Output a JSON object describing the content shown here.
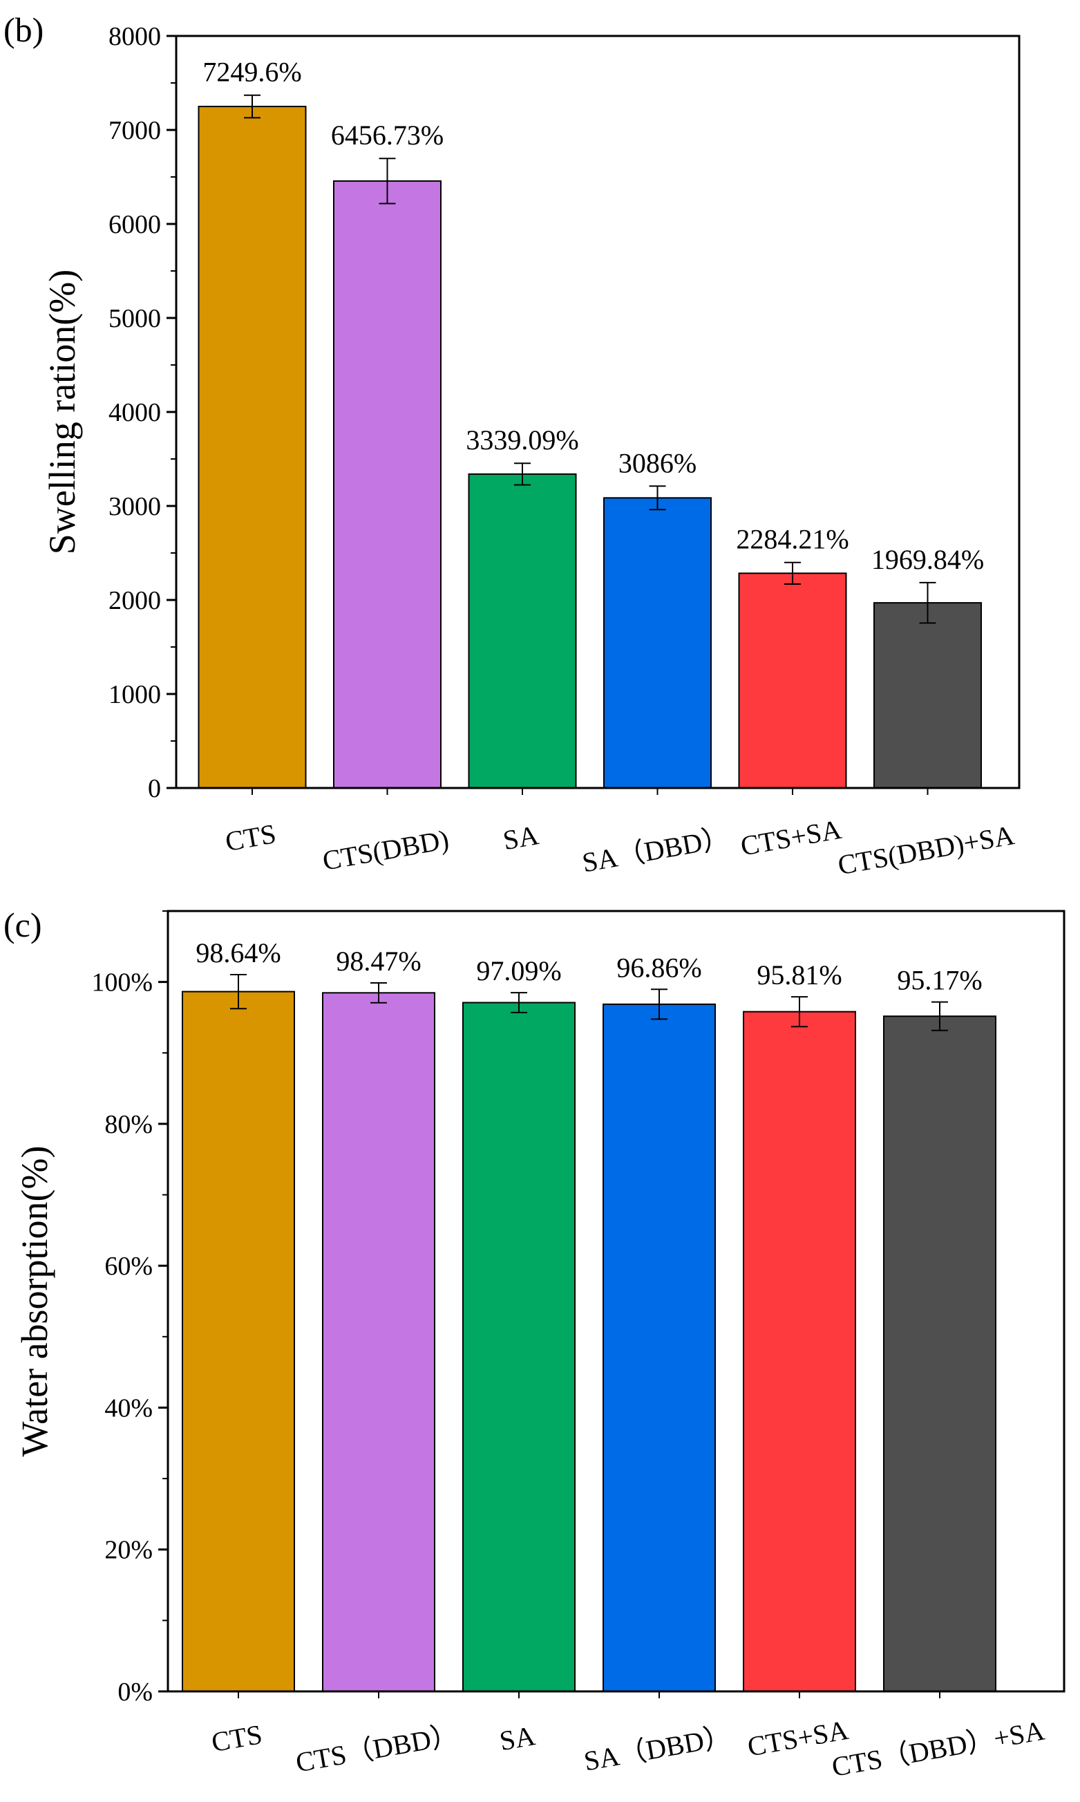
{
  "colors": [
    "#d89500",
    "#c477e3",
    "#00a862",
    "#006be6",
    "#ff3a3f",
    "#4f4f4f"
  ],
  "chart_data": [
    {
      "type": "bar",
      "panel_label": "(b)",
      "categories": [
        "CTS",
        "CTS(DBD)",
        "SA",
        "SA（DBD）",
        "CTS+SA",
        "CTS(DBD)+SA"
      ],
      "values": [
        7249.6,
        6456.73,
        3339.09,
        3086,
        2284.21,
        1969.84
      ],
      "errors": [
        120,
        240,
        115,
        125,
        115,
        215
      ],
      "data_labels": [
        "7249.6%",
        "6456.73%",
        "3339.09%",
        "3086%",
        "2284.21%",
        "1969.84%"
      ],
      "xlabel": "",
      "ylabel": "Swelling ration(%)",
      "ylim": [
        0,
        8000
      ],
      "yticks": [
        0,
        1000,
        2000,
        3000,
        4000,
        5000,
        6000,
        7000,
        8000
      ],
      "ytick_labels": [
        "0",
        "1000",
        "2000",
        "3000",
        "4000",
        "5000",
        "6000",
        "7000",
        "8000"
      ]
    },
    {
      "type": "bar",
      "panel_label": "(c)",
      "categories": [
        "CTS",
        "CTS（DBD）",
        "SA",
        "SA（DBD）",
        "CTS+SA",
        "CTS（DBD）+SA"
      ],
      "values": [
        98.64,
        98.47,
        97.09,
        96.86,
        95.81,
        95.17
      ],
      "errors": [
        2.4,
        1.4,
        1.4,
        2.1,
        2.1,
        2.0
      ],
      "data_labels": [
        "98.64%",
        "98.47%",
        "97.09%",
        "96.86%",
        "95.81%",
        "95.17%"
      ],
      "xlabel": "",
      "ylabel": "Water absorption(%)",
      "ylim": [
        0,
        110
      ],
      "yticks": [
        0,
        20,
        40,
        60,
        80,
        100
      ],
      "ytick_labels": [
        "0%",
        "20%",
        "40%",
        "60%",
        "80%",
        "100%"
      ]
    }
  ]
}
